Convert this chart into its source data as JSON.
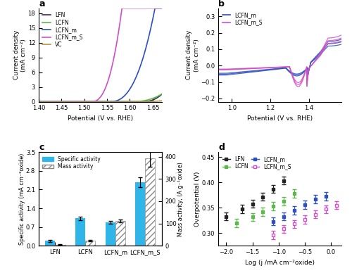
{
  "panel_a": {
    "title": "a",
    "xlabel": "Potential (V vs. RHE)",
    "ylabel": "Current density\n(mA cm⁻²)",
    "xlim": [
      1.4,
      1.67
    ],
    "ylim": [
      0,
      19
    ],
    "yticks": [
      0,
      3,
      6,
      9,
      12,
      15,
      18
    ],
    "lines": [
      {
        "label": "LFN",
        "color": "#3b2a5a",
        "onset": 1.625,
        "k": 3500,
        "exp": 2.5
      },
      {
        "label": "LCFN",
        "color": "#5cb84a",
        "onset": 1.6,
        "k": 1200,
        "exp": 2.5
      },
      {
        "label": "LCFN_m",
        "color": "#2e4fbf",
        "onset": 1.555,
        "k": 6000,
        "exp": 2.5
      },
      {
        "label": "LCFN_m_S",
        "color": "#d04fc8",
        "onset": 1.515,
        "k": 16000,
        "exp": 2.5
      },
      {
        "label": "VC",
        "color": "#b0963c",
        "onset": 1.61,
        "k": 200,
        "exp": 2.5
      }
    ]
  },
  "panel_b": {
    "title": "b",
    "xlabel": "Potential (V vs. RHE)",
    "ylabel": "Current density\n(mA cm⁻²)",
    "xlim": [
      0.93,
      1.57
    ],
    "ylim": [
      -0.22,
      0.35
    ],
    "yticks": [
      -0.2,
      -0.1,
      0.0,
      0.1,
      0.2,
      0.3
    ],
    "blue_color": "#2e4fbf",
    "magenta_color": "#d04fc8"
  },
  "panel_c": {
    "title": "c",
    "ylabel_left": "Specific activity (mA cm⁻²oxide)",
    "ylabel_right": "Mass activity, (A g⁻¹oxide)",
    "categories": [
      "LFN",
      "LCFN",
      "LCFN_m",
      "LCFN_m_S"
    ],
    "specific_activity": [
      0.18,
      1.02,
      0.87,
      2.38
    ],
    "specific_activity_err": [
      0.03,
      0.07,
      0.06,
      0.18
    ],
    "mass_activity": [
      5,
      22,
      112,
      392
    ],
    "mass_activity_err": [
      1.0,
      2.5,
      7.0,
      38.0
    ],
    "bar_color_specific": "#30b5e8",
    "bar_color_mass": "#c8c8c8",
    "ylim_left": [
      0.0,
      3.5
    ],
    "ylim_right": [
      0,
      420
    ],
    "yticks_left": [
      0.0,
      0.7,
      1.4,
      2.1,
      2.8,
      3.5
    ],
    "yticks_right": [
      0,
      100,
      200,
      300,
      400
    ]
  },
  "panel_d": {
    "title": "d",
    "xlabel": "Log (j /mA cm⁻²oxide)",
    "ylabel": "Overpotential (V)",
    "xlim": [
      -2.15,
      0.2
    ],
    "ylim": [
      0.275,
      0.46
    ],
    "yticks": [
      0.3,
      0.35,
      0.4,
      0.45
    ],
    "lines": [
      {
        "label": "LFN",
        "color": "#222222",
        "filled": true,
        "x": [
          -2.0,
          -1.7,
          -1.5,
          -1.3,
          -1.1,
          -0.9
        ],
        "y": [
          0.333,
          0.348,
          0.358,
          0.372,
          0.387,
          0.404
        ]
      },
      {
        "label": "LCFN",
        "color": "#5cb84a",
        "filled": true,
        "x": [
          -1.8,
          -1.5,
          -1.3,
          -1.1,
          -0.9,
          -0.7
        ],
        "y": [
          0.32,
          0.332,
          0.342,
          0.353,
          0.363,
          0.378
        ]
      },
      {
        "label": "LCFN_m",
        "color": "#2e4fbf",
        "filled": true,
        "x": [
          -1.1,
          -0.9,
          -0.7,
          -0.5,
          -0.3,
          -0.1
        ],
        "y": [
          0.323,
          0.333,
          0.345,
          0.356,
          0.367,
          0.373
        ]
      },
      {
        "label": "LCFN_m_S",
        "color": "#d04fc8",
        "filled": false,
        "x": [
          -1.1,
          -0.9,
          -0.7,
          -0.5,
          -0.3,
          -0.1,
          0.1
        ],
        "y": [
          0.296,
          0.308,
          0.318,
          0.327,
          0.337,
          0.347,
          0.355
        ]
      }
    ]
  }
}
